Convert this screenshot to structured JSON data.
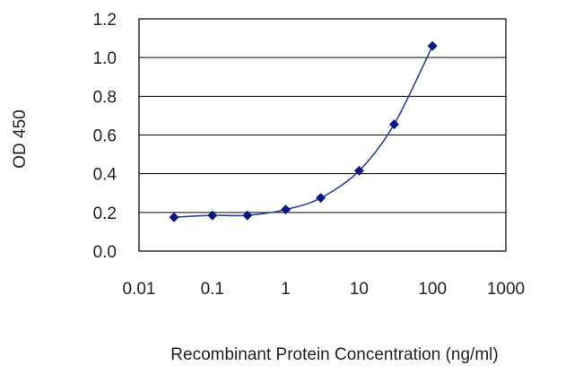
{
  "chart_data": {
    "type": "line",
    "title": "",
    "xlabel": "Recombinant Protein Concentration (ng/ml)",
    "ylabel": "OD 450",
    "x_scale": "log",
    "xlim": [
      0.01,
      1000
    ],
    "ylim": [
      0,
      1.2
    ],
    "x_ticks": [
      "0.01",
      "0.1",
      "1",
      "10",
      "100",
      "1000"
    ],
    "y_ticks": [
      "0.0",
      "0.2",
      "0.4",
      "0.6",
      "0.8",
      "1.0",
      "1.2"
    ],
    "grid": "horizontal",
    "legend": "none",
    "series": [
      {
        "x": [
          0.03,
          0.1,
          0.3,
          1,
          3,
          10,
          30,
          100
        ],
        "y": [
          0.175,
          0.185,
          0.185,
          0.215,
          0.275,
          0.415,
          0.655,
          1.06
        ]
      }
    ],
    "colors": {
      "line": "#2a3fa0",
      "marker": "#0a1a80",
      "grid": "#000000",
      "axis": "#000000"
    }
  }
}
